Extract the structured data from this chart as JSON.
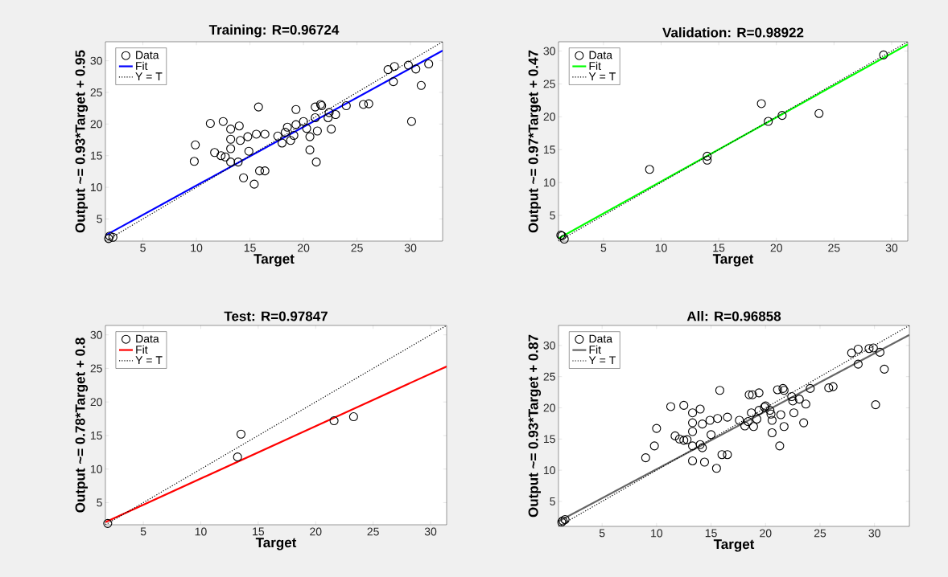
{
  "chart_data": [
    {
      "type": "scatter",
      "title": "Training: R=0.96724",
      "xlabel": "Target",
      "ylabel": "Output ~= 0.93*Target + 0.95",
      "xlim": [
        1.5,
        33
      ],
      "ylim": [
        1.5,
        33
      ],
      "xticks": [
        5,
        10,
        15,
        20,
        25,
        30
      ],
      "yticks": [
        5,
        10,
        15,
        20,
        25,
        30
      ],
      "legend": "top left",
      "series": [
        {
          "name": "Data",
          "marker": "circle",
          "color": "#000000",
          "x": [
            27.9,
            28.5,
            29.8,
            30.5,
            31.7,
            28.4,
            31.0,
            30.1,
            15.8,
            19.3,
            21.6,
            21.7,
            21.1,
            24.0,
            25.6,
            26.1,
            22.4,
            23.0,
            22.3,
            22.6,
            11.3,
            12.5,
            13.2,
            14.0,
            9.9,
            11.7,
            12.3,
            12.7,
            13.2,
            13.2,
            14.1,
            14.8,
            15.6,
            16.4,
            17.6,
            18.0,
            18.5,
            18.8,
            19.3,
            20.0,
            20.3,
            20.6,
            21.1,
            21.3,
            20.6,
            21.2,
            9.8,
            13.2,
            13.9,
            14.9,
            15.9,
            16.4,
            14.4,
            15.4,
            18.3,
            19.1,
            1.9,
            2.2,
            1.8
          ],
          "values": [
            28.6,
            29.1,
            29.3,
            28.7,
            29.5,
            26.7,
            26.1,
            20.4,
            22.7,
            22.3,
            23.1,
            22.9,
            22.7,
            22.9,
            23.1,
            23.2,
            21.8,
            21.5,
            21.0,
            19.2,
            20.1,
            20.4,
            19.2,
            19.7,
            16.7,
            15.5,
            15.0,
            14.8,
            16.1,
            17.6,
            17.4,
            18.0,
            18.4,
            18.4,
            18.1,
            17.0,
            19.5,
            17.4,
            19.9,
            20.4,
            19.3,
            18.0,
            21.0,
            18.9,
            15.9,
            14.0,
            14.1,
            14.0,
            14.0,
            15.7,
            12.6,
            12.6,
            11.5,
            10.5,
            18.7,
            18.2,
            2.3,
            2.1,
            1.9
          ]
        },
        {
          "name": "Fit",
          "type": "line",
          "line_style": "solid",
          "color": "#0000ff",
          "x": [
            1.5,
            33
          ],
          "values": [
            2.4,
            31.6
          ]
        },
        {
          "name": "Y = T",
          "type": "line",
          "line_style": "dotted",
          "color": "#000000",
          "x": [
            1.5,
            33
          ],
          "values": [
            1.5,
            33
          ]
        }
      ]
    },
    {
      "type": "scatter",
      "title": "Validation: R=0.98922",
      "xlabel": "Target",
      "ylabel": "Output ~= 0.97*Target + 0.47",
      "xlim": [
        1.1,
        31.4
      ],
      "ylim": [
        1.1,
        31.4
      ],
      "xticks": [
        5,
        10,
        15,
        20,
        25,
        30
      ],
      "yticks": [
        5,
        10,
        15,
        20,
        25,
        30
      ],
      "legend": "top left",
      "series": [
        {
          "name": "Data",
          "marker": "circle",
          "color": "#000000",
          "x": [
            29.3,
            9.0,
            18.7,
            19.3,
            20.5,
            23.7,
            14.0,
            14.0,
            1.4,
            1.6,
            1.3
          ],
          "values": [
            29.4,
            12.0,
            22.0,
            19.3,
            20.2,
            20.5,
            14.0,
            13.4,
            1.9,
            1.4,
            2.0
          ]
        },
        {
          "name": "Fit",
          "type": "line",
          "line_style": "solid",
          "color": "#00ff00",
          "x": [
            1.1,
            31.4
          ],
          "values": [
            1.5,
            31.0
          ]
        },
        {
          "name": "Y = T",
          "type": "line",
          "line_style": "dotted",
          "color": "#000000",
          "x": [
            1.1,
            31.4
          ],
          "values": [
            1.1,
            31.4
          ]
        }
      ]
    },
    {
      "type": "scatter",
      "title": "Test: R=0.97847",
      "xlabel": "Target",
      "ylabel": "Output ~= 0.78*Target + 0.8",
      "xlim": [
        1.7,
        31.4
      ],
      "ylim": [
        1.7,
        31.4
      ],
      "xticks": [
        5,
        10,
        15,
        20,
        25,
        30
      ],
      "yticks": [
        5,
        10,
        15,
        20,
        25,
        30
      ],
      "legend": "top left",
      "series": [
        {
          "name": "Data",
          "marker": "circle",
          "color": "#000000",
          "x": [
            13.5,
            13.2,
            21.6,
            23.3,
            1.9
          ],
          "values": [
            15.2,
            11.8,
            17.2,
            17.8,
            1.9
          ]
        },
        {
          "name": "Fit",
          "type": "line",
          "line_style": "solid",
          "color": "#ff0000",
          "x": [
            1.7,
            31.4
          ],
          "values": [
            2.1,
            25.3
          ]
        },
        {
          "name": "Y = T",
          "type": "line",
          "line_style": "dotted",
          "color": "#000000",
          "x": [
            1.7,
            31.4
          ],
          "values": [
            1.7,
            31.4
          ]
        }
      ]
    },
    {
      "type": "scatter",
      "title": "All: R=0.96858",
      "xlabel": "Target",
      "ylabel": "Output ~= 0.93*Target + 0.87",
      "xlim": [
        1,
        33.2
      ],
      "ylim": [
        1,
        33.2
      ],
      "xticks": [
        5,
        10,
        15,
        20,
        25,
        30
      ],
      "yticks": [
        5,
        10,
        15,
        20,
        25,
        30
      ],
      "legend": "top left",
      "series": [
        {
          "name": "Data",
          "marker": "circle",
          "color": "#000000",
          "x": [
            27.9,
            28.5,
            29.5,
            29.9,
            30.5,
            28.5,
            30.9,
            30.1,
            15.8,
            18.8,
            19.4,
            21.1,
            21.6,
            21.7,
            22.4,
            22.5,
            23.1,
            23.7,
            24.1,
            25.8,
            26.2,
            11.3,
            12.5,
            13.3,
            14.0,
            10.0,
            9.8,
            9.0,
            11.7,
            12.1,
            12.5,
            12.8,
            13.3,
            13.3,
            14.2,
            14.9,
            15.6,
            16.5,
            17.6,
            18.1,
            18.4,
            18.7,
            19.4,
            19.9,
            20.4,
            20.5,
            20.6,
            20.6,
            21.3,
            21.4,
            21.7,
            22.6,
            23.5,
            18.9,
            18.5,
            13.3,
            14.0,
            14.2,
            15.0,
            16.0,
            16.5,
            13.3,
            14.4,
            15.5,
            20.0,
            19.2,
            1.4,
            1.6,
            1.3
          ],
          "values": [
            28.8,
            29.4,
            29.5,
            29.6,
            28.9,
            27.0,
            26.2,
            20.5,
            22.8,
            22.1,
            22.4,
            22.9,
            23.1,
            22.8,
            21.8,
            21.1,
            21.4,
            20.6,
            23.1,
            23.2,
            23.4,
            20.2,
            20.4,
            19.2,
            19.8,
            16.7,
            13.9,
            12.0,
            15.5,
            15.0,
            14.8,
            14.9,
            16.2,
            17.6,
            17.4,
            18.0,
            18.3,
            18.5,
            18.0,
            17.1,
            17.8,
            19.2,
            19.6,
            20.1,
            19.6,
            19.0,
            18.0,
            16.0,
            13.9,
            18.9,
            17.0,
            19.2,
            17.6,
            17.0,
            22.1,
            13.9,
            14.1,
            13.6,
            15.7,
            12.5,
            12.5,
            11.5,
            11.3,
            10.3,
            20.3,
            18.2,
            1.9,
            2.1,
            1.7
          ]
        },
        {
          "name": "Fit",
          "type": "line",
          "line_style": "solid",
          "color": "#666666",
          "x": [
            1,
            33.2
          ],
          "values": [
            1.8,
            31.7
          ]
        },
        {
          "name": "Y = T",
          "type": "line",
          "line_style": "dotted",
          "color": "#000000",
          "x": [
            1,
            33.2
          ],
          "values": [
            1,
            33.2
          ]
        }
      ]
    }
  ]
}
